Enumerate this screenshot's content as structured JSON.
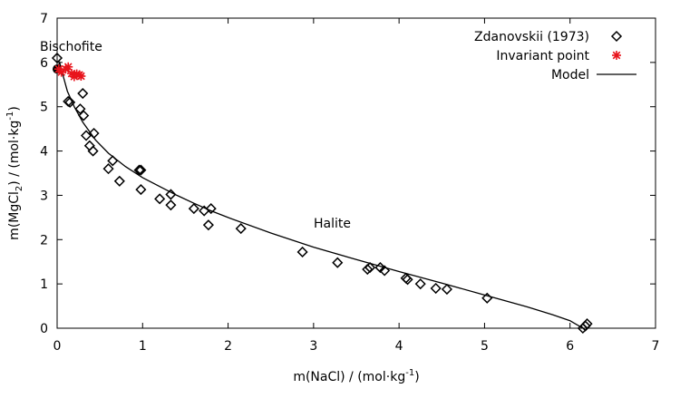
{
  "chart_data": {
    "type": "scatter",
    "xlabel_main": "m(NaCl) / (mol·kg",
    "xlabel_sup": "-1",
    "xlabel_end": ")",
    "ylabel_a": "m(MgCl",
    "ylabel_sub": "2",
    "ylabel_b": ") / (mol·kg",
    "ylabel_sup": "-1",
    "ylabel_c": ")",
    "xlim": [
      0,
      7
    ],
    "ylim": [
      0,
      7
    ],
    "xticks": [
      "0",
      "1",
      "2",
      "3",
      "4",
      "5",
      "6",
      "7"
    ],
    "yticks": [
      "0",
      "1",
      "2",
      "3",
      "4",
      "5",
      "6",
      "7"
    ],
    "grid": false,
    "legend_position": "top-right",
    "annotations": [
      {
        "text": "Bischofite",
        "x": 0.15,
        "y": 6.3
      },
      {
        "text": "Halite",
        "x": 3.2,
        "y": 2.3
      }
    ],
    "series": [
      {
        "name": "Zdanovskii (1973)",
        "kind": "points",
        "marker": "diamond",
        "color": "#000000",
        "points": [
          [
            0.0,
            6.1
          ],
          [
            0.15,
            5.1
          ],
          [
            0.13,
            5.12
          ],
          [
            0.27,
            4.95
          ],
          [
            0.31,
            4.8
          ],
          [
            0.3,
            5.3
          ],
          [
            0.34,
            4.35
          ],
          [
            0.38,
            4.12
          ],
          [
            0.42,
            4.0
          ],
          [
            0.43,
            4.4
          ],
          [
            0.6,
            3.6
          ],
          [
            0.65,
            3.78
          ],
          [
            0.73,
            3.32
          ],
          [
            0.96,
            3.57
          ],
          [
            0.98,
            3.57
          ],
          [
            0.98,
            3.13
          ],
          [
            1.2,
            2.92
          ],
          [
            1.33,
            3.02
          ],
          [
            1.33,
            2.78
          ],
          [
            1.6,
            2.7
          ],
          [
            1.72,
            2.65
          ],
          [
            1.77,
            2.33
          ],
          [
            1.8,
            2.7
          ],
          [
            2.15,
            2.25
          ],
          [
            2.87,
            1.72
          ],
          [
            3.28,
            1.48
          ],
          [
            3.63,
            1.33
          ],
          [
            3.66,
            1.37
          ],
          [
            3.78,
            1.37
          ],
          [
            3.83,
            1.3
          ],
          [
            4.08,
            1.13
          ],
          [
            4.1,
            1.1
          ],
          [
            4.25,
            1.0
          ],
          [
            4.43,
            0.9
          ],
          [
            4.56,
            0.88
          ],
          [
            5.03,
            0.68
          ],
          [
            6.15,
            0.0
          ],
          [
            6.18,
            0.05
          ],
          [
            6.2,
            0.1
          ]
        ]
      },
      {
        "name": "Invariant point",
        "kind": "points",
        "marker": "asterisk",
        "color": "#e8141c",
        "points": [
          [
            0.02,
            5.85
          ],
          [
            0.05,
            5.78
          ],
          [
            0.1,
            5.85
          ],
          [
            0.13,
            5.9
          ],
          [
            0.17,
            5.75
          ],
          [
            0.2,
            5.68
          ],
          [
            0.23,
            5.74
          ],
          [
            0.26,
            5.72
          ],
          [
            0.28,
            5.69
          ]
        ]
      },
      {
        "name": "Model",
        "kind": "line",
        "color": "#000000",
        "points": [
          [
            0.0,
            5.85
          ],
          [
            0.03,
            6.0
          ],
          [
            0.07,
            5.7
          ],
          [
            0.12,
            5.35
          ],
          [
            0.2,
            5.0
          ],
          [
            0.3,
            4.65
          ],
          [
            0.45,
            4.25
          ],
          [
            0.6,
            3.95
          ],
          [
            0.8,
            3.65
          ],
          [
            1.0,
            3.4
          ],
          [
            1.2,
            3.2
          ],
          [
            1.4,
            3.0
          ],
          [
            1.6,
            2.82
          ],
          [
            1.8,
            2.65
          ],
          [
            2.0,
            2.5
          ],
          [
            2.5,
            2.15
          ],
          [
            3.0,
            1.83
          ],
          [
            3.5,
            1.55
          ],
          [
            4.0,
            1.28
          ],
          [
            4.5,
            1.02
          ],
          [
            5.0,
            0.75
          ],
          [
            5.5,
            0.48
          ],
          [
            5.8,
            0.3
          ],
          [
            6.0,
            0.17
          ],
          [
            6.15,
            0.0
          ]
        ]
      },
      {
        "name": "",
        "kind": "dots",
        "color": "#000000",
        "points": [
          [
            0.0,
            5.85
          ]
        ]
      }
    ]
  }
}
